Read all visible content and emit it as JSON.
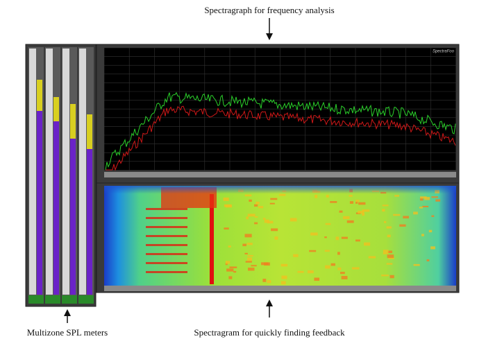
{
  "annotations": {
    "top": "Spectragraph for frequency analysis",
    "bottom_left": "Multizone SPL meters",
    "bottom_right": "Spectragram for quickly finding feedback"
  },
  "app": {
    "brand": "SpectraFoo"
  }
}
